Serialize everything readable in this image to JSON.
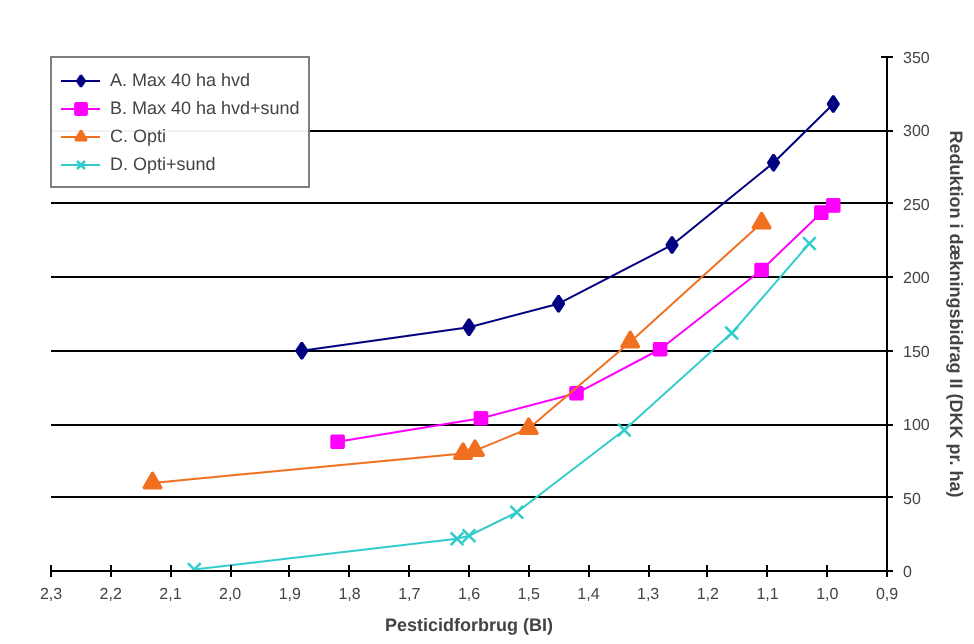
{
  "chart_data": {
    "type": "line",
    "xlabel": "Pesticidforbrug (BI)",
    "ylabel": "Reduktion i dækningsbidrag II (DKK pr. ha)",
    "xlim": [
      2.3,
      0.9
    ],
    "xticks": [
      {
        "value": 2.3,
        "label": "2,3"
      },
      {
        "value": 2.2,
        "label": "2,2"
      },
      {
        "value": 2.1,
        "label": "2,1"
      },
      {
        "value": 2.0,
        "label": "2,0"
      },
      {
        "value": 1.9,
        "label": "1,9"
      },
      {
        "value": 1.8,
        "label": "1,8"
      },
      {
        "value": 1.7,
        "label": "1,7"
      },
      {
        "value": 1.6,
        "label": "1,6"
      },
      {
        "value": 1.5,
        "label": "1,5"
      },
      {
        "value": 1.4,
        "label": "1,4"
      },
      {
        "value": 1.3,
        "label": "1,3"
      },
      {
        "value": 1.2,
        "label": "1,2"
      },
      {
        "value": 1.1,
        "label": "1,1"
      },
      {
        "value": 1.0,
        "label": "1,0"
      },
      {
        "value": 0.9,
        "label": "0,9"
      }
    ],
    "ylim": [
      0,
      350
    ],
    "yticks": [
      0,
      50,
      100,
      150,
      200,
      250,
      300,
      350
    ],
    "grid": "y",
    "legend": "top left",
    "series": [
      {
        "name": "A. Max 40 ha hvd",
        "color": "#000080",
        "marker": "diamond",
        "x": [
          1.88,
          1.6,
          1.45,
          1.26,
          1.09,
          0.99
        ],
        "values": [
          150,
          166,
          182,
          222,
          278,
          318
        ]
      },
      {
        "name": "B. Max 40 ha hvd+sund",
        "color": "#ff00ff",
        "marker": "square",
        "x": [
          1.82,
          1.58,
          1.42,
          1.28,
          1.11,
          1.01,
          0.99
        ],
        "values": [
          88,
          104,
          121,
          151,
          205,
          244,
          249
        ]
      },
      {
        "name": "C. Opti",
        "color": "#f07020",
        "marker": "triangle",
        "x": [
          2.13,
          1.61,
          1.59,
          1.5,
          1.33,
          1.11
        ],
        "values": [
          60,
          80,
          82,
          97,
          156,
          237
        ]
      },
      {
        "name": "D. Opti+sund",
        "color": "#33cccc",
        "marker": "cross",
        "x": [
          2.06,
          1.62,
          1.6,
          1.52,
          1.34,
          1.16,
          1.03
        ],
        "values": [
          1,
          22,
          24,
          40,
          96,
          162,
          223
        ]
      }
    ]
  }
}
